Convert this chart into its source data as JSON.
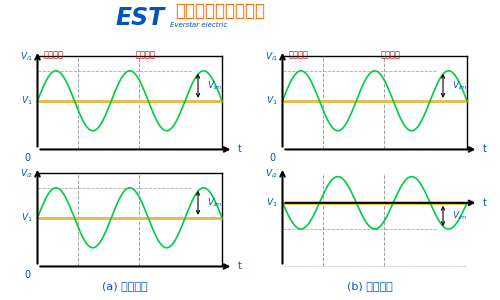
{
  "title": "共模信号和差模信号",
  "logo_text": "EST",
  "logo_sub": "Everstar electric",
  "bg_color": "#ffffff",
  "dc_label": "直流信号",
  "ac_label": "交流信号",
  "label_a": "(a) 共模信号",
  "label_b": "(b) 差模信号",
  "dc_level": 0.55,
  "ac_amp": 0.3,
  "O_label": "0",
  "t_label": "t",
  "line_color_green": "#00cc44",
  "line_color_yellow": "#e8b840",
  "blue_color": "#0055bb",
  "red_color": "#cc0000",
  "orange_color": "#ff6600",
  "gray_color": "#888888",
  "panel_border_color": "#000000"
}
